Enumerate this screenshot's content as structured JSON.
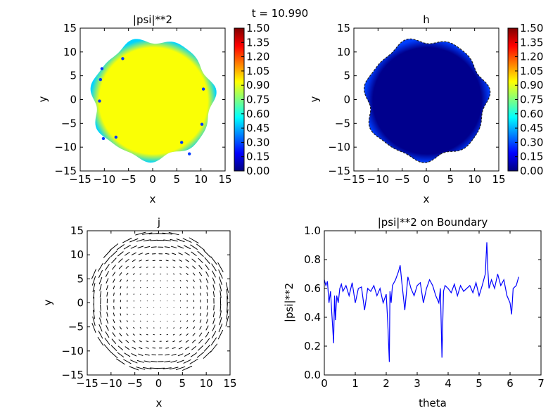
{
  "figure": {
    "suptitle": "t = 10.990"
  },
  "colormap": {
    "name": "jet",
    "stops": [
      "#00007f",
      "#0000ff",
      "#007fff",
      "#00ffff",
      "#7fff7f",
      "#ffff00",
      "#ff7f00",
      "#ff0000",
      "#7f0000"
    ]
  },
  "chart_data": [
    {
      "id": "psi2-map",
      "type": "heatmap",
      "title": "|psi|**2",
      "xlabel": "x",
      "ylabel": "y",
      "xlim": [
        -15,
        15
      ],
      "ylim": [
        -15,
        15
      ],
      "xticks": [
        "−15",
        "−10",
        "−5",
        "0",
        "5",
        "10",
        "15"
      ],
      "yticks": [
        "−15",
        "−10",
        "−5",
        "0",
        "5",
        "10",
        "15"
      ],
      "boundary_radius": 12.5,
      "interior_value": 0.93,
      "edge_value": 0.5,
      "outside": "white",
      "vortices": [
        [
          -10.5,
          6.5
        ],
        [
          -10.8,
          4.2
        ],
        [
          -11.0,
          -0.3
        ],
        [
          -6.2,
          8.6
        ],
        [
          -7.6,
          -7.9
        ],
        [
          10.5,
          2.2
        ],
        [
          10.2,
          -5.2
        ],
        [
          6.0,
          -9.0
        ],
        [
          -10.2,
          -8.2
        ],
        [
          7.6,
          -11.4
        ]
      ],
      "colorbar": {
        "vmin": 0.0,
        "vmax": 1.5,
        "ticks": [
          "0.00",
          "0.15",
          "0.30",
          "0.45",
          "0.60",
          "0.75",
          "0.90",
          "1.05",
          "1.20",
          "1.35",
          "1.50"
        ]
      }
    },
    {
      "id": "h-map",
      "type": "heatmap",
      "title": "h",
      "xlabel": "x",
      "ylabel": "y",
      "xlim": [
        -15,
        15
      ],
      "ylim": [
        -15,
        15
      ],
      "xticks": [
        "−15",
        "−10",
        "−5",
        "0",
        "5",
        "10",
        "15"
      ],
      "yticks": [
        "−15",
        "−10",
        "−5",
        "0",
        "5",
        "10",
        "15"
      ],
      "boundary_radius": 12.5,
      "interior_value": 0.02,
      "edge_value": 0.28,
      "outside": "white",
      "colorbar": {
        "vmin": 0.0,
        "vmax": 1.5,
        "ticks": [
          "0.00",
          "0.15",
          "0.30",
          "0.45",
          "0.60",
          "0.75",
          "0.90",
          "1.05",
          "1.20",
          "1.35",
          "1.50"
        ]
      }
    },
    {
      "id": "j-quiver",
      "type": "quiver",
      "title": "j",
      "xlabel": "x",
      "ylabel": "y",
      "xlim": [
        -15,
        15
      ],
      "ylim": [
        -15,
        15
      ],
      "xticks": [
        "−15",
        "−10",
        "−5",
        "0",
        "5",
        "10",
        "15"
      ],
      "yticks": [
        "−15",
        "−10",
        "−5",
        "0",
        "5",
        "10",
        "15"
      ],
      "grid_step": 1.4,
      "domain_radius": 15,
      "rotation": "clockwise",
      "max_arrow_length": 2.2
    },
    {
      "id": "boundary-line",
      "type": "line",
      "title": "|psi|**2 on Boundary",
      "xlabel": "theta",
      "ylabel": "|psi|**2",
      "xlim": [
        0,
        7
      ],
      "ylim": [
        0.0,
        1.0
      ],
      "xticks": [
        "0",
        "1",
        "2",
        "3",
        "4",
        "5",
        "6",
        "7"
      ],
      "yticks": [
        "0.0",
        "0.2",
        "0.4",
        "0.6",
        "0.8",
        "1.0"
      ],
      "color": "#0000ff",
      "series": [
        {
          "name": "|psi|**2",
          "x": [
            0.0,
            0.05,
            0.1,
            0.15,
            0.2,
            0.25,
            0.3,
            0.33,
            0.36,
            0.4,
            0.45,
            0.5,
            0.55,
            0.6,
            0.7,
            0.8,
            0.9,
            1.0,
            1.1,
            1.2,
            1.3,
            1.4,
            1.5,
            1.6,
            1.7,
            1.8,
            1.9,
            2.0,
            2.05,
            2.1,
            2.12,
            2.16,
            2.2,
            2.3,
            2.4,
            2.45,
            2.5,
            2.6,
            2.7,
            2.8,
            2.9,
            3.0,
            3.1,
            3.2,
            3.3,
            3.4,
            3.5,
            3.6,
            3.7,
            3.75,
            3.8,
            3.85,
            3.9,
            4.0,
            4.1,
            4.2,
            4.3,
            4.4,
            4.5,
            4.6,
            4.7,
            4.8,
            4.9,
            5.0,
            5.1,
            5.2,
            5.25,
            5.28,
            5.32,
            5.4,
            5.5,
            5.6,
            5.7,
            5.8,
            5.9,
            6.0,
            6.05,
            6.1,
            6.2,
            6.28
          ],
          "y": [
            0.66,
            0.62,
            0.65,
            0.5,
            0.58,
            0.4,
            0.22,
            0.55,
            0.38,
            0.55,
            0.5,
            0.6,
            0.63,
            0.58,
            0.62,
            0.55,
            0.64,
            0.5,
            0.6,
            0.61,
            0.45,
            0.6,
            0.58,
            0.62,
            0.55,
            0.6,
            0.5,
            0.56,
            0.36,
            0.09,
            0.58,
            0.5,
            0.62,
            0.66,
            0.72,
            0.76,
            0.65,
            0.45,
            0.68,
            0.6,
            0.55,
            0.62,
            0.64,
            0.5,
            0.6,
            0.66,
            0.62,
            0.55,
            0.5,
            0.6,
            0.12,
            0.58,
            0.62,
            0.6,
            0.57,
            0.63,
            0.55,
            0.62,
            0.58,
            0.6,
            0.62,
            0.57,
            0.64,
            0.55,
            0.62,
            0.7,
            0.92,
            0.74,
            0.6,
            0.66,
            0.6,
            0.7,
            0.62,
            0.66,
            0.55,
            0.5,
            0.42,
            0.6,
            0.62,
            0.68
          ]
        }
      ]
    }
  ]
}
